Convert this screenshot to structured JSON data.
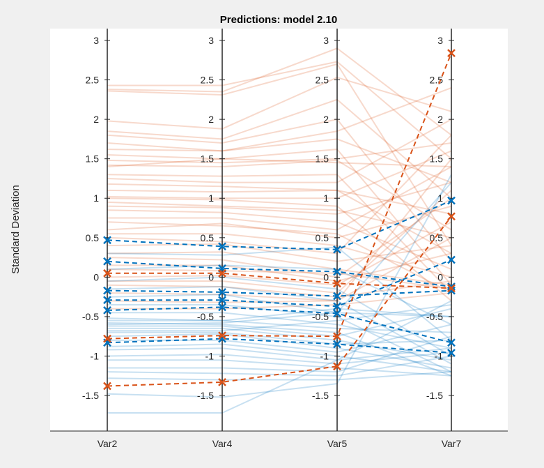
{
  "chart_data": {
    "type": "parallel-coordinates",
    "title": "Predictions: model 2.10",
    "ylabel": "Standard Deviation",
    "categories": [
      "Var2",
      "Var4",
      "Var5",
      "Var7"
    ],
    "ylim": [
      -1.95,
      3.15
    ],
    "yticks": [
      3,
      2.5,
      2,
      1.5,
      1,
      0.5,
      0,
      -0.5,
      -1,
      -1.5
    ],
    "colors": {
      "group1": "#D95319",
      "group2": "#0072BD"
    },
    "highlighted": [
      {
        "group": "group2",
        "values": [
          0.47,
          0.39,
          0.35,
          0.97
        ]
      },
      {
        "group": "group2",
        "values": [
          0.2,
          0.11,
          0.07,
          -0.12
        ]
      },
      {
        "group": "group2",
        "values": [
          -0.17,
          -0.19,
          -0.24,
          -0.17
        ]
      },
      {
        "group": "group2",
        "values": [
          -0.29,
          -0.29,
          -0.37,
          0.22
        ]
      },
      {
        "group": "group2",
        "values": [
          -0.42,
          -0.38,
          -0.46,
          -0.83
        ]
      },
      {
        "group": "group2",
        "values": [
          -0.83,
          -0.78,
          -0.85,
          -0.96
        ]
      },
      {
        "group": "group1",
        "values": [
          0.05,
          0.05,
          -0.08,
          -0.14
        ]
      },
      {
        "group": "group1",
        "values": [
          -0.78,
          -0.74,
          -0.75,
          2.84
        ]
      },
      {
        "group": "group1",
        "values": [
          -1.38,
          -1.33,
          -1.13,
          0.77
        ]
      }
    ],
    "background_series": [
      {
        "group": "group1",
        "values": [
          2.43,
          2.43,
          2.73,
          1.5
        ]
      },
      {
        "group": "group1",
        "values": [
          2.38,
          2.35,
          2.9,
          1.8
        ]
      },
      {
        "group": "group1",
        "values": [
          2.36,
          2.31,
          2.7,
          0.4
        ]
      },
      {
        "group": "group1",
        "values": [
          1.98,
          1.88,
          2.53,
          2.1
        ]
      },
      {
        "group": "group1",
        "values": [
          1.85,
          1.75,
          2.25,
          1.0
        ]
      },
      {
        "group": "group1",
        "values": [
          1.8,
          1.7,
          2.0,
          0.2
        ]
      },
      {
        "group": "group1",
        "values": [
          1.7,
          1.6,
          1.85,
          2.4
        ]
      },
      {
        "group": "group1",
        "values": [
          1.62,
          1.6,
          1.75,
          1.2
        ]
      },
      {
        "group": "group1",
        "values": [
          1.55,
          1.5,
          1.62,
          -0.1
        ]
      },
      {
        "group": "group1",
        "values": [
          1.48,
          1.45,
          1.5,
          1.7
        ]
      },
      {
        "group": "group1",
        "values": [
          1.42,
          1.4,
          1.48,
          0.6
        ]
      },
      {
        "group": "group1",
        "values": [
          1.4,
          1.5,
          1.45,
          1.4
        ]
      },
      {
        "group": "group1",
        "values": [
          1.3,
          1.28,
          1.3,
          -0.2
        ]
      },
      {
        "group": "group1",
        "values": [
          1.25,
          1.2,
          1.2,
          2.0
        ]
      },
      {
        "group": "group1",
        "values": [
          1.18,
          1.15,
          1.1,
          0.8
        ]
      },
      {
        "group": "group1",
        "values": [
          1.1,
          1.08,
          1.1,
          0.3
        ]
      },
      {
        "group": "group1",
        "values": [
          1.02,
          1.0,
          1.0,
          1.6
        ]
      },
      {
        "group": "group1",
        "values": [
          1.0,
          0.98,
          0.9,
          -0.3
        ]
      },
      {
        "group": "group1",
        "values": [
          0.95,
          0.9,
          0.85,
          0.5
        ]
      },
      {
        "group": "group1",
        "values": [
          0.9,
          0.88,
          0.8,
          1.2
        ]
      },
      {
        "group": "group1",
        "values": [
          0.85,
          0.82,
          0.7,
          0.1
        ]
      },
      {
        "group": "group1",
        "values": [
          0.75,
          0.75,
          0.6,
          1.4
        ]
      },
      {
        "group": "group1",
        "values": [
          0.7,
          0.65,
          0.55,
          -0.2
        ]
      },
      {
        "group": "group1",
        "values": [
          0.6,
          0.68,
          0.5,
          0.9
        ]
      },
      {
        "group": "group1",
        "values": [
          0.55,
          0.55,
          0.4,
          0.0
        ]
      },
      {
        "group": "group1",
        "values": [
          0.5,
          0.45,
          0.3,
          1.8
        ]
      },
      {
        "group": "group1",
        "values": [
          0.4,
          0.42,
          0.2,
          0.4
        ]
      },
      {
        "group": "group1",
        "values": [
          0.3,
          0.32,
          0.1,
          -0.1
        ]
      },
      {
        "group": "group1",
        "values": [
          0.25,
          0.22,
          0.0,
          1.0
        ]
      },
      {
        "group": "group1",
        "values": [
          0.15,
          0.15,
          -0.05,
          0.3
        ]
      },
      {
        "group": "group1",
        "values": [
          0.1,
          0.08,
          0.05,
          -0.15
        ]
      },
      {
        "group": "group1",
        "values": [
          0.0,
          0.02,
          -0.1,
          0.7
        ]
      },
      {
        "group": "group1",
        "values": [
          -0.05,
          -0.05,
          -0.2,
          1.1
        ]
      },
      {
        "group": "group1",
        "values": [
          -0.1,
          -0.12,
          -0.25,
          -0.05
        ]
      },
      {
        "group": "group1",
        "values": [
          -0.2,
          -0.22,
          -0.3,
          0.5
        ]
      },
      {
        "group": "group1",
        "values": [
          -0.3,
          -0.32,
          -0.3,
          1.5
        ]
      },
      {
        "group": "group1",
        "values": [
          -0.4,
          -0.4,
          -0.35,
          -0.2
        ]
      },
      {
        "group": "group2",
        "values": [
          0.3,
          0.28,
          0.38,
          -0.8
        ]
      },
      {
        "group": "group2",
        "values": [
          0.1,
          0.15,
          0.1,
          -0.6
        ]
      },
      {
        "group": "group2",
        "values": [
          -0.05,
          0.0,
          -0.15,
          -1.0
        ]
      },
      {
        "group": "group2",
        "values": [
          -0.15,
          -0.12,
          -0.3,
          -1.1
        ]
      },
      {
        "group": "group2",
        "values": [
          -0.25,
          -0.22,
          -0.45,
          -0.5
        ]
      },
      {
        "group": "group2",
        "values": [
          -0.35,
          -0.35,
          -0.5,
          -1.2
        ]
      },
      {
        "group": "group2",
        "values": [
          -0.45,
          -0.45,
          -0.6,
          -0.9
        ]
      },
      {
        "group": "group2",
        "values": [
          -0.52,
          -0.55,
          -0.65,
          -0.7
        ]
      },
      {
        "group": "group2",
        "values": [
          -0.58,
          -0.6,
          -0.7,
          -1.25
        ]
      },
      {
        "group": "group2",
        "values": [
          -0.62,
          -0.62,
          -0.75,
          -0.4
        ]
      },
      {
        "group": "group2",
        "values": [
          -0.65,
          -0.65,
          -0.8,
          -1.05
        ]
      },
      {
        "group": "group2",
        "values": [
          -0.7,
          -0.7,
          -0.85,
          -0.8
        ]
      },
      {
        "group": "group2",
        "values": [
          -0.75,
          -0.72,
          -0.9,
          -1.15
        ]
      },
      {
        "group": "group2",
        "values": [
          -0.8,
          -0.8,
          -0.95,
          -0.6
        ]
      },
      {
        "group": "group2",
        "values": [
          -0.88,
          -0.85,
          -1.0,
          -1.2
        ]
      },
      {
        "group": "group2",
        "values": [
          -0.92,
          -0.9,
          -1.05,
          -0.3
        ]
      },
      {
        "group": "group2",
        "values": [
          -1.0,
          -0.98,
          -1.1,
          -0.95
        ]
      },
      {
        "group": "group2",
        "values": [
          -1.05,
          -1.05,
          -1.15,
          -1.25
        ]
      },
      {
        "group": "group2",
        "values": [
          -1.15,
          -1.15,
          -1.2,
          -0.75
        ]
      },
      {
        "group": "group2",
        "values": [
          -1.2,
          -1.22,
          -1.25,
          -1.0
        ]
      },
      {
        "group": "group2",
        "values": [
          -1.28,
          -1.3,
          -1.3,
          -1.2
        ]
      },
      {
        "group": "group2",
        "values": [
          -1.48,
          -1.52,
          -1.35,
          1.3
        ]
      },
      {
        "group": "group2",
        "values": [
          -1.72,
          -1.72,
          -1.05,
          -0.9
        ]
      },
      {
        "group": "group2",
        "values": [
          -0.55,
          -0.55,
          -0.4,
          -0.5
        ]
      },
      {
        "group": "group2",
        "values": [
          -0.68,
          -0.68,
          -0.55,
          -0.35
        ]
      },
      {
        "group": "group2",
        "values": [
          -0.6,
          -0.58,
          -0.45,
          1.2
        ]
      }
    ]
  }
}
